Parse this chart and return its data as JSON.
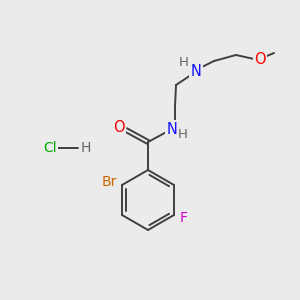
{
  "bg_color": "#EBEBEB",
  "atom_colors": {
    "C": "#000000",
    "N": "#1010FF",
    "O": "#FF0000",
    "Br": "#CC6600",
    "F": "#CC00CC",
    "H": "#666666",
    "Cl": "#00AA00"
  },
  "bond_color": "#404040",
  "bond_width": 1.4,
  "font_size": 9.5,
  "figsize": [
    3.0,
    3.0
  ],
  "dpi": 100
}
